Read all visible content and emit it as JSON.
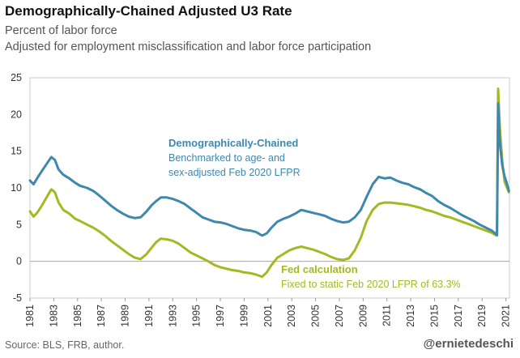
{
  "header": {
    "title": "Demographically-Chained Adjusted U3 Rate",
    "subtitle1": "Percent of labor force",
    "subtitle2": "Adjusted for employment misclassification and labor force participation"
  },
  "footer": {
    "source": "Source: BLS, FRB, author.",
    "handle": "@ernietedeschi"
  },
  "colors": {
    "chained": "#3f88ad",
    "fed": "#a6b821"
  },
  "annotations": {
    "chained_title": "Demographically-Chained",
    "chained_line1": "Benchmarked to age- and",
    "chained_line2": "sex-adjusted Feb 2020 LFPR",
    "fed_title": "Fed calculation",
    "fed_line1": "Fixed to static Feb 2020 LFPR of 63.3%"
  },
  "chart_data": {
    "type": "line",
    "title": "Demographically-Chained Adjusted U3 Rate",
    "xlabel": "",
    "ylabel": "",
    "xlim": [
      1981,
      2021.3
    ],
    "ylim": [
      -5,
      25
    ],
    "yticks": [
      -5,
      0,
      5,
      10,
      15,
      20,
      25
    ],
    "xticks": [
      1981,
      1983,
      1985,
      1987,
      1989,
      1991,
      1993,
      1995,
      1997,
      1999,
      2001,
      2003,
      2005,
      2007,
      2009,
      2011,
      2013,
      2015,
      2017,
      2019,
      2021
    ],
    "grid": false,
    "legend": "none",
    "series": [
      {
        "name": "Demographically-Chained",
        "x": [
          1981.0,
          1981.3,
          1981.6,
          1982.0,
          1982.5,
          1982.8,
          1983.1,
          1983.4,
          1983.8,
          1984.3,
          1984.8,
          1985.2,
          1985.8,
          1986.3,
          1986.8,
          1987.3,
          1987.8,
          1988.3,
          1988.8,
          1989.3,
          1989.8,
          1990.3,
          1990.8,
          1991.2,
          1991.6,
          1992.0,
          1992.5,
          1993.0,
          1993.5,
          1994.0,
          1994.5,
          1995.0,
          1995.5,
          1996.0,
          1996.5,
          1997.0,
          1997.5,
          1998.0,
          1998.5,
          1999.0,
          1999.5,
          2000.0,
          2000.5,
          2000.9,
          2001.3,
          2001.8,
          2002.3,
          2002.8,
          2003.3,
          2003.8,
          2004.3,
          2004.8,
          2005.3,
          2005.8,
          2006.3,
          2006.8,
          2007.3,
          2007.8,
          2008.3,
          2008.8,
          2009.3,
          2009.8,
          2010.3,
          2010.8,
          2011.3,
          2011.8,
          2012.3,
          2012.8,
          2013.3,
          2013.8,
          2014.3,
          2014.8,
          2015.3,
          2015.8,
          2016.3,
          2016.8,
          2017.3,
          2017.8,
          2018.3,
          2018.8,
          2019.3,
          2019.8,
          2020.1,
          2020.25,
          2020.35,
          2020.5,
          2020.7,
          2020.9,
          2021.1,
          2021.25
        ],
        "values": [
          11.0,
          10.5,
          11.3,
          12.3,
          13.5,
          14.2,
          13.8,
          12.5,
          11.8,
          11.3,
          10.7,
          10.3,
          10.0,
          9.6,
          9.0,
          8.3,
          7.6,
          7.0,
          6.5,
          6.1,
          5.9,
          6.0,
          6.8,
          7.6,
          8.2,
          8.7,
          8.7,
          8.5,
          8.2,
          7.8,
          7.2,
          6.6,
          6.0,
          5.7,
          5.4,
          5.3,
          5.1,
          4.8,
          4.5,
          4.3,
          4.2,
          4.0,
          3.5,
          3.8,
          4.6,
          5.4,
          5.8,
          6.1,
          6.5,
          7.0,
          6.8,
          6.6,
          6.4,
          6.2,
          5.8,
          5.5,
          5.3,
          5.4,
          6.0,
          7.0,
          8.8,
          10.5,
          11.5,
          11.3,
          11.4,
          11.0,
          10.7,
          10.5,
          10.1,
          9.8,
          9.3,
          8.9,
          8.2,
          7.7,
          7.3,
          6.8,
          6.3,
          5.9,
          5.5,
          5.0,
          4.6,
          4.2,
          3.8,
          3.6,
          21.5,
          16.0,
          13.0,
          11.5,
          10.5,
          9.6
        ]
      },
      {
        "name": "Fed calculation",
        "x": [
          1981.0,
          1981.3,
          1981.6,
          1982.0,
          1982.5,
          1982.8,
          1983.1,
          1983.4,
          1983.8,
          1984.3,
          1984.8,
          1985.2,
          1985.8,
          1986.3,
          1986.8,
          1987.3,
          1987.8,
          1988.3,
          1988.8,
          1989.3,
          1989.8,
          1990.3,
          1990.8,
          1991.2,
          1991.6,
          1992.0,
          1992.5,
          1993.0,
          1993.5,
          1994.0,
          1994.5,
          1995.0,
          1995.5,
          1996.0,
          1996.5,
          1997.0,
          1997.5,
          1998.0,
          1998.5,
          1999.0,
          1999.5,
          2000.0,
          2000.5,
          2000.9,
          2001.3,
          2001.8,
          2002.3,
          2002.8,
          2003.3,
          2003.8,
          2004.3,
          2004.8,
          2005.3,
          2005.8,
          2006.3,
          2006.8,
          2007.3,
          2007.8,
          2008.3,
          2008.8,
          2009.3,
          2009.8,
          2010.3,
          2010.8,
          2011.3,
          2011.8,
          2012.3,
          2012.8,
          2013.3,
          2013.8,
          2014.3,
          2014.8,
          2015.3,
          2015.8,
          2016.3,
          2016.8,
          2017.3,
          2017.8,
          2018.3,
          2018.8,
          2019.3,
          2019.8,
          2020.1,
          2020.25,
          2020.35,
          2020.5,
          2020.7,
          2020.9,
          2021.1,
          2021.25
        ],
        "values": [
          6.8,
          6.1,
          6.6,
          7.6,
          9.0,
          9.8,
          9.4,
          8.0,
          7.0,
          6.5,
          5.8,
          5.5,
          5.0,
          4.6,
          4.1,
          3.5,
          2.8,
          2.2,
          1.6,
          1.0,
          0.5,
          0.3,
          1.0,
          1.8,
          2.6,
          3.1,
          3.0,
          2.8,
          2.4,
          1.8,
          1.2,
          0.8,
          0.4,
          0.0,
          -0.5,
          -0.8,
          -1.0,
          -1.2,
          -1.3,
          -1.5,
          -1.6,
          -1.8,
          -2.1,
          -1.5,
          -0.5,
          0.5,
          1.0,
          1.5,
          1.8,
          2.0,
          1.8,
          1.6,
          1.3,
          1.0,
          0.6,
          0.3,
          0.2,
          0.4,
          1.5,
          3.2,
          5.5,
          7.0,
          7.8,
          8.0,
          8.0,
          7.9,
          7.8,
          7.7,
          7.5,
          7.3,
          7.0,
          6.8,
          6.5,
          6.2,
          6.0,
          5.7,
          5.4,
          5.1,
          4.8,
          4.5,
          4.2,
          3.9,
          3.6,
          3.5,
          23.5,
          18.0,
          13.5,
          10.8,
          10.0,
          9.4
        ]
      }
    ]
  }
}
